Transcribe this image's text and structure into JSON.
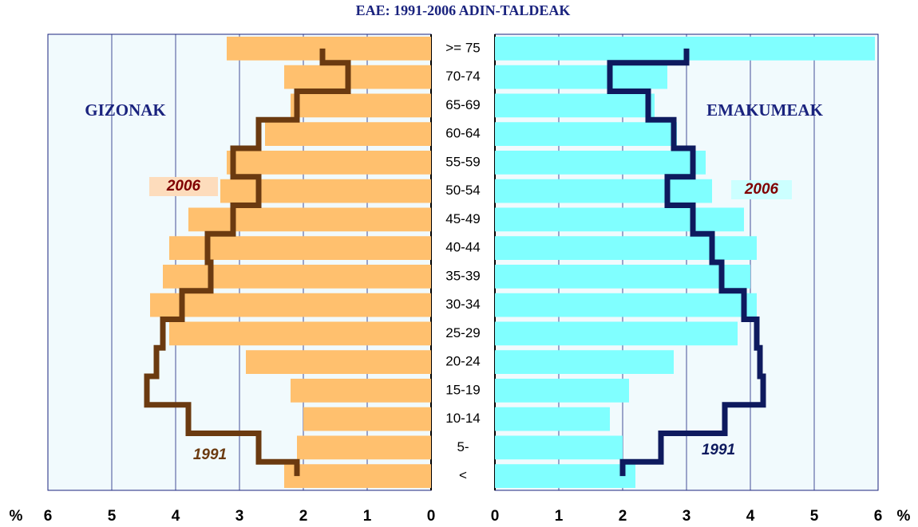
{
  "chart_data": {
    "type": "pyramid",
    "title": "EAE: 1991-2006 ADIN-TALDEAK",
    "unit_label": "%",
    "categories": [
      ">= 75",
      "70-74",
      "65-69",
      "60-64",
      "55-59",
      "50-54",
      "45-49",
      "40-44",
      "35-39",
      "30-34",
      "25-29",
      "20-24",
      "15-19",
      "10-14",
      "5-",
      "<"
    ],
    "xlim": [
      0,
      6
    ],
    "xticks": [
      0,
      1,
      2,
      3,
      4,
      5,
      6
    ],
    "panels": [
      {
        "label": "GIZONAK",
        "series": [
          {
            "name": "2006",
            "kind": "bar",
            "color": "#ffc06e",
            "values": [
              3.2,
              2.3,
              2.2,
              2.6,
              3.2,
              3.3,
              3.8,
              4.1,
              4.2,
              4.4,
              4.1,
              2.9,
              2.2,
              2.0,
              2.1,
              2.3
            ]
          },
          {
            "name": "1991",
            "kind": "line",
            "color": "#6b3a10",
            "values": [
              1.7,
              1.3,
              2.1,
              2.7,
              3.1,
              2.7,
              3.1,
              3.5,
              3.45,
              3.9,
              4.2,
              4.3,
              4.45,
              3.8,
              2.7,
              2.1
            ]
          }
        ]
      },
      {
        "label": "EMAKUMEAK",
        "series": [
          {
            "name": "2006",
            "kind": "bar",
            "color": "#80ffff",
            "values": [
              5.95,
              2.7,
              2.5,
              2.85,
              3.3,
              3.4,
              3.9,
              4.1,
              4.0,
              4.1,
              3.8,
              2.8,
              2.1,
              1.8,
              2.0,
              2.2
            ]
          },
          {
            "name": "1991",
            "kind": "line",
            "color": "#0e1a5e",
            "values": [
              3.0,
              1.8,
              2.4,
              2.8,
              3.1,
              2.7,
              3.1,
              3.4,
              3.55,
              3.9,
              4.1,
              4.15,
              4.2,
              3.6,
              2.6,
              2.0
            ]
          }
        ]
      }
    ]
  }
}
